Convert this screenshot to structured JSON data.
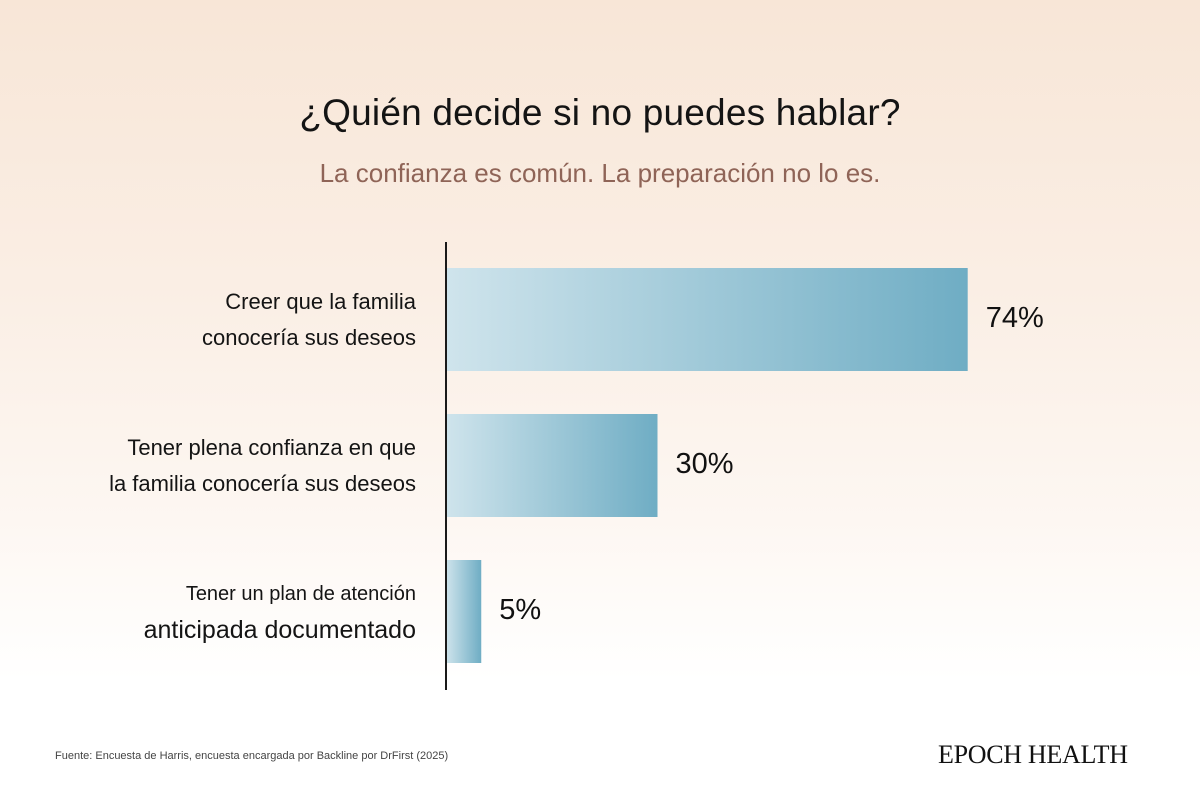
{
  "header": {
    "title": "¿Quién decide si no puedes hablar?",
    "subtitle": "La confianza es común. La preparación no lo es."
  },
  "chart_data": {
    "type": "bar",
    "orientation": "horizontal",
    "title": "¿Quién decide si no puedes hablar?",
    "subtitle": "La confianza es común. La preparación no lo es.",
    "categories": [
      [
        "Creer que la familia",
        "conocería sus deseos"
      ],
      [
        "Tener plena confianza en que",
        "la familia conocería sus deseos"
      ],
      [
        "Tener un plan de atención",
        "anticipada documentado"
      ]
    ],
    "values": [
      74,
      30,
      5
    ],
    "value_labels": [
      "74%",
      "30%",
      "5%"
    ],
    "unit": "%",
    "xlabel": "",
    "ylabel": "",
    "xlim": [
      0,
      100
    ],
    "grid": false,
    "legend": "none",
    "colors": {
      "bar_start": "#cfe4ec",
      "bar_end": "#6fadc4",
      "axis": "#1a1a1a"
    }
  },
  "footer": {
    "source": "Fuente: Encuesta de Harris, encuesta encargada por Backline por DrFirst (2025)",
    "brand": "EPOCH HEALTH"
  }
}
